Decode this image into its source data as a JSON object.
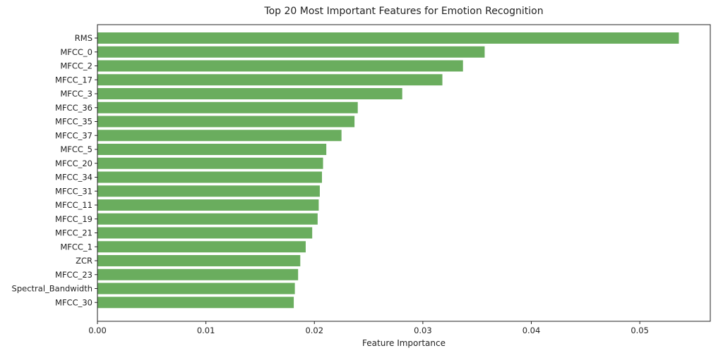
{
  "chart_data": {
    "type": "bar",
    "orientation": "horizontal",
    "title": "Top 20 Most Important Features for Emotion Recognition",
    "xlabel": "Feature Importance",
    "ylabel": "",
    "xlim": [
      0,
      0.0565
    ],
    "xticks": [
      0.0,
      0.01,
      0.02,
      0.03,
      0.04,
      0.05
    ],
    "xtick_labels": [
      "0.00",
      "0.01",
      "0.02",
      "0.03",
      "0.04",
      "0.05"
    ],
    "grid": false,
    "bar_color": "#6aad5e",
    "categories": [
      "RMS",
      "MFCC_0",
      "MFCC_2",
      "MFCC_17",
      "MFCC_3",
      "MFCC_36",
      "MFCC_35",
      "MFCC_37",
      "MFCC_5",
      "MFCC_20",
      "MFCC_34",
      "MFCC_31",
      "MFCC_11",
      "MFCC_19",
      "MFCC_21",
      "MFCC_1",
      "ZCR",
      "MFCC_23",
      "Spectral_Bandwidth",
      "MFCC_30"
    ],
    "values": [
      0.0536,
      0.0357,
      0.0337,
      0.0318,
      0.0281,
      0.024,
      0.0237,
      0.0225,
      0.0211,
      0.0208,
      0.0207,
      0.0205,
      0.0204,
      0.0203,
      0.0198,
      0.0192,
      0.0187,
      0.0185,
      0.0182,
      0.0181
    ]
  }
}
